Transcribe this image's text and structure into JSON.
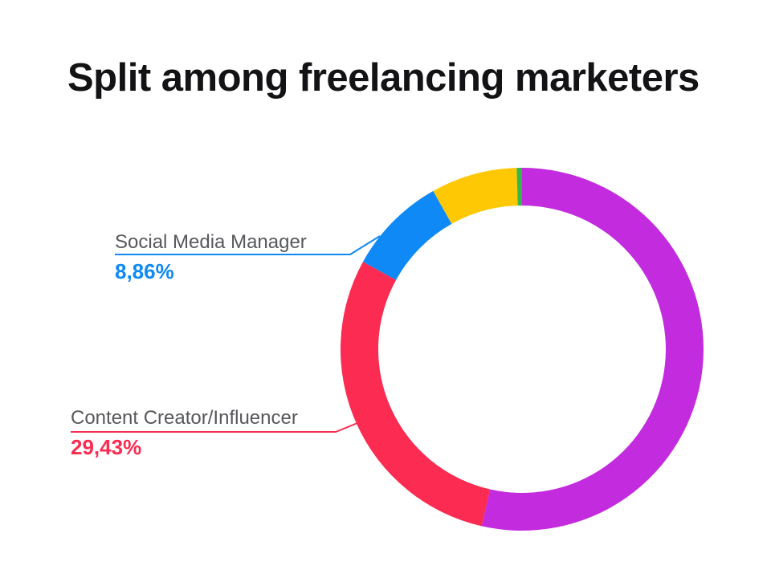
{
  "title": "Split among freelancing marketers",
  "colors": {
    "background": "#FFFFFF",
    "title_text": "#131316",
    "label_text": "#57585C",
    "purple": "#C32BDE",
    "red": "#FB2B51",
    "blue": "#0E89F5",
    "yellow": "#FFC805",
    "green": "#35B74A"
  },
  "chart_data": {
    "type": "pie",
    "subtype": "donut",
    "title": "Split among freelancing marketers",
    "unit": "%",
    "decimal_separator": ",",
    "start_angle_deg": 0,
    "direction": "clockwise",
    "legend": "none",
    "inner_radius_ratio": 0.79,
    "segments": [
      {
        "label": "",
        "value": 53.57,
        "color": "#C32BDE"
      },
      {
        "label": "Content Creator/Influencer",
        "value": 29.43,
        "value_display": "29,43%",
        "color": "#FB2B51"
      },
      {
        "label": "Social Media Manager",
        "value": 8.86,
        "value_display": "8,86%",
        "color": "#0E89F5"
      },
      {
        "label": "",
        "value": 7.67,
        "color": "#FFC805"
      },
      {
        "label": "",
        "value": 0.47,
        "color": "#35B74A"
      }
    ],
    "annotations": [
      {
        "label": "Social Media Manager",
        "value_display": "8,86%",
        "color": "#0E89F5"
      },
      {
        "label": "Content Creator/Influencer",
        "value_display": "29,43%",
        "color": "#FB2B51"
      }
    ]
  }
}
